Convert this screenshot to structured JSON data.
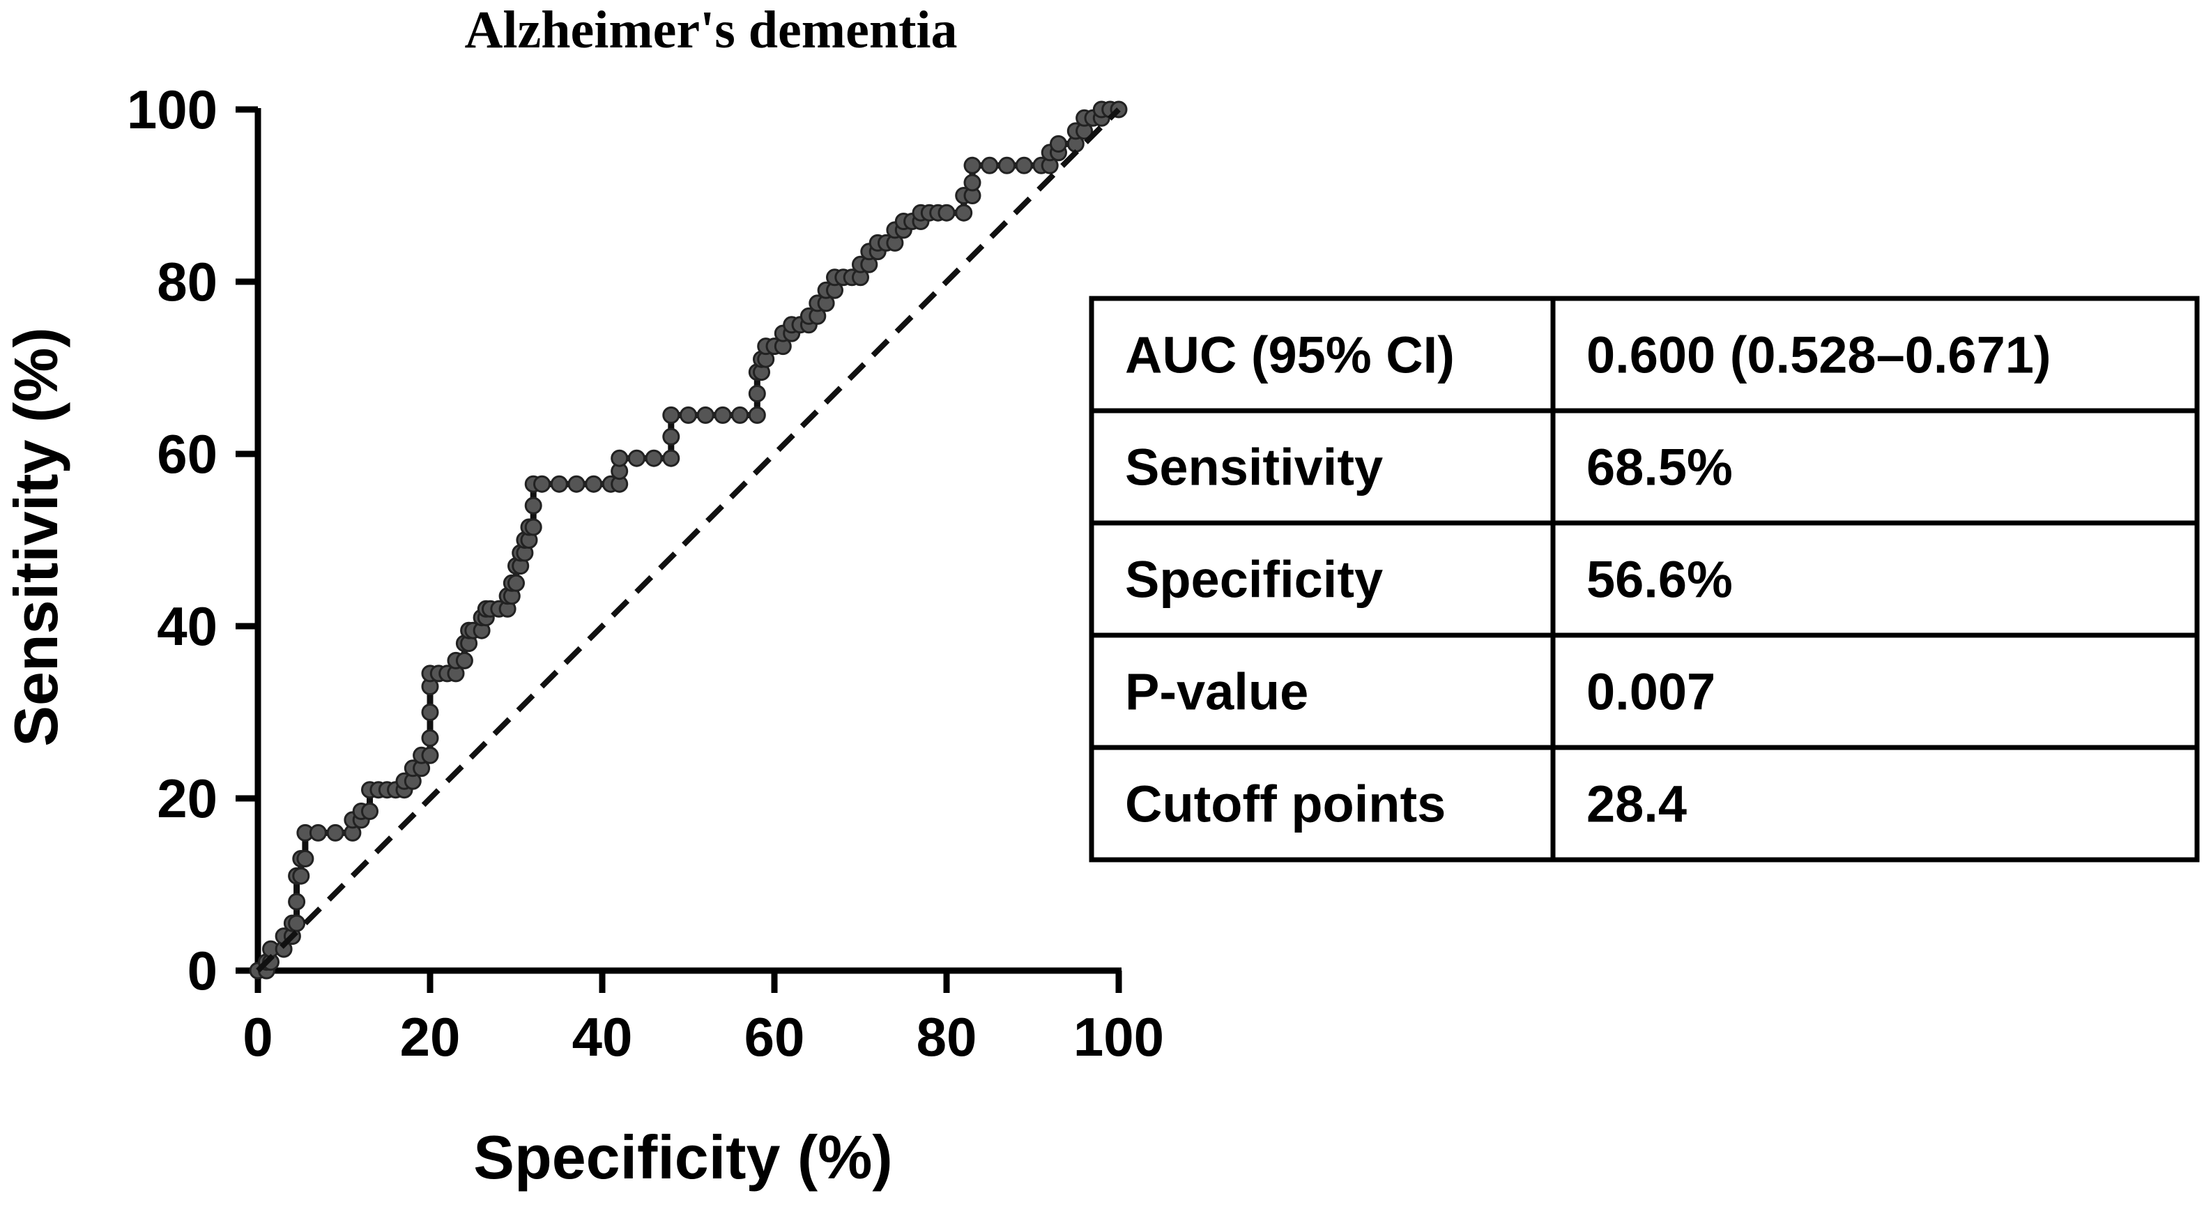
{
  "chart_data": {
    "type": "line",
    "title": "Alzheimer's dementia",
    "xlabel": "Specificity (%)",
    "ylabel": "Sensitivity (%)",
    "xlim": [
      0,
      100
    ],
    "ylim": [
      0,
      100
    ],
    "xticks": [
      "0",
      "20",
      "40",
      "60",
      "80",
      "100"
    ],
    "yticks": [
      "0",
      "20",
      "40",
      "60",
      "80",
      "100"
    ],
    "grid": false,
    "series": [
      {
        "style": "solid-with-markers",
        "color": "#111111",
        "points": [
          [
            0,
            0
          ],
          [
            1,
            0
          ],
          [
            1,
            1
          ],
          [
            1.5,
            1
          ],
          [
            1.5,
            2.5
          ],
          [
            3,
            2.5
          ],
          [
            3,
            4
          ],
          [
            4,
            4
          ],
          [
            4,
            5.5
          ],
          [
            4.5,
            5.5
          ],
          [
            4.5,
            8
          ],
          [
            4.5,
            11
          ],
          [
            5,
            11
          ],
          [
            5,
            13
          ],
          [
            5.5,
            13
          ],
          [
            5.5,
            16
          ],
          [
            7,
            16
          ],
          [
            9,
            16
          ],
          [
            11,
            16
          ],
          [
            11,
            17.5
          ],
          [
            12,
            17.5
          ],
          [
            12,
            18.5
          ],
          [
            13,
            18.5
          ],
          [
            13,
            21
          ],
          [
            14,
            21
          ],
          [
            15,
            21
          ],
          [
            16,
            21
          ],
          [
            17,
            21
          ],
          [
            17,
            22
          ],
          [
            18,
            22
          ],
          [
            18,
            23.5
          ],
          [
            19,
            23.5
          ],
          [
            19,
            25
          ],
          [
            20,
            25
          ],
          [
            20,
            27
          ],
          [
            20,
            30
          ],
          [
            20,
            33
          ],
          [
            20,
            34.5
          ],
          [
            21,
            34.5
          ],
          [
            22,
            34.5
          ],
          [
            23,
            34.5
          ],
          [
            23,
            36
          ],
          [
            24,
            36
          ],
          [
            24,
            38
          ],
          [
            24.5,
            38
          ],
          [
            24.5,
            39.5
          ],
          [
            25,
            39.5
          ],
          [
            26,
            39.5
          ],
          [
            26,
            41
          ],
          [
            26.5,
            41
          ],
          [
            26.5,
            42
          ],
          [
            27,
            42
          ],
          [
            28,
            42
          ],
          [
            29,
            42
          ],
          [
            29,
            43.5
          ],
          [
            29.5,
            43.5
          ],
          [
            29.5,
            45
          ],
          [
            30,
            45
          ],
          [
            30,
            47
          ],
          [
            30.5,
            47
          ],
          [
            30.5,
            48.5
          ],
          [
            31,
            48.5
          ],
          [
            31,
            50
          ],
          [
            31.5,
            50
          ],
          [
            31.5,
            51.5
          ],
          [
            32,
            51.5
          ],
          [
            32,
            54
          ],
          [
            32,
            56.5
          ],
          [
            33,
            56.5
          ],
          [
            35,
            56.5
          ],
          [
            37,
            56.5
          ],
          [
            39,
            56.5
          ],
          [
            41,
            56.5
          ],
          [
            42,
            56.5
          ],
          [
            42,
            58
          ],
          [
            42,
            59.5
          ],
          [
            44,
            59.5
          ],
          [
            46,
            59.5
          ],
          [
            48,
            59.5
          ],
          [
            48,
            62
          ],
          [
            48,
            64.5
          ],
          [
            50,
            64.5
          ],
          [
            52,
            64.5
          ],
          [
            54,
            64.5
          ],
          [
            56,
            64.5
          ],
          [
            58,
            64.5
          ],
          [
            58,
            67
          ],
          [
            58,
            69.5
          ],
          [
            58.5,
            69.5
          ],
          [
            58.5,
            71
          ],
          [
            59,
            71
          ],
          [
            59,
            72.5
          ],
          [
            60,
            72.5
          ],
          [
            61,
            72.5
          ],
          [
            61,
            74
          ],
          [
            62,
            74
          ],
          [
            62,
            75
          ],
          [
            63,
            75
          ],
          [
            64,
            75
          ],
          [
            64,
            76
          ],
          [
            65,
            76
          ],
          [
            65,
            77.5
          ],
          [
            66,
            77.5
          ],
          [
            66,
            79
          ],
          [
            67,
            79
          ],
          [
            67,
            80.5
          ],
          [
            68,
            80.5
          ],
          [
            69,
            80.5
          ],
          [
            70,
            80.5
          ],
          [
            70,
            82
          ],
          [
            71,
            82
          ],
          [
            71,
            83.5
          ],
          [
            72,
            83.5
          ],
          [
            72,
            84.5
          ],
          [
            73,
            84.5
          ],
          [
            74,
            84.5
          ],
          [
            74,
            86
          ],
          [
            75,
            86
          ],
          [
            75,
            87
          ],
          [
            76,
            87
          ],
          [
            77,
            87
          ],
          [
            77,
            88
          ],
          [
            78,
            88
          ],
          [
            79,
            88
          ],
          [
            80,
            88
          ],
          [
            82,
            88
          ],
          [
            82,
            90
          ],
          [
            83,
            90
          ],
          [
            83,
            91.5
          ],
          [
            83,
            93.5
          ],
          [
            85,
            93.5
          ],
          [
            87,
            93.5
          ],
          [
            89,
            93.5
          ],
          [
            91,
            93.5
          ],
          [
            92,
            93.5
          ],
          [
            92,
            95
          ],
          [
            93,
            95
          ],
          [
            93,
            96
          ],
          [
            95,
            96
          ],
          [
            95,
            97.5
          ],
          [
            96,
            97.5
          ],
          [
            96,
            99
          ],
          [
            97,
            99
          ],
          [
            98,
            99
          ],
          [
            98,
            100
          ],
          [
            99,
            100
          ],
          [
            100,
            100
          ]
        ]
      },
      {
        "style": "dashed",
        "color": "#111111",
        "points": [
          [
            0,
            0
          ],
          [
            100,
            100
          ]
        ]
      }
    ],
    "table": {
      "rows": [
        {
          "label": "AUC (95% CI)",
          "value": "0.600 (0.528–0.671)"
        },
        {
          "label": "Sensitivity",
          "value": "68.5%"
        },
        {
          "label": "Specificity",
          "value": "56.6%"
        },
        {
          "label": "P-value",
          "value": "0.007"
        },
        {
          "label": "Cutoff points",
          "value": "28.4"
        }
      ]
    }
  }
}
